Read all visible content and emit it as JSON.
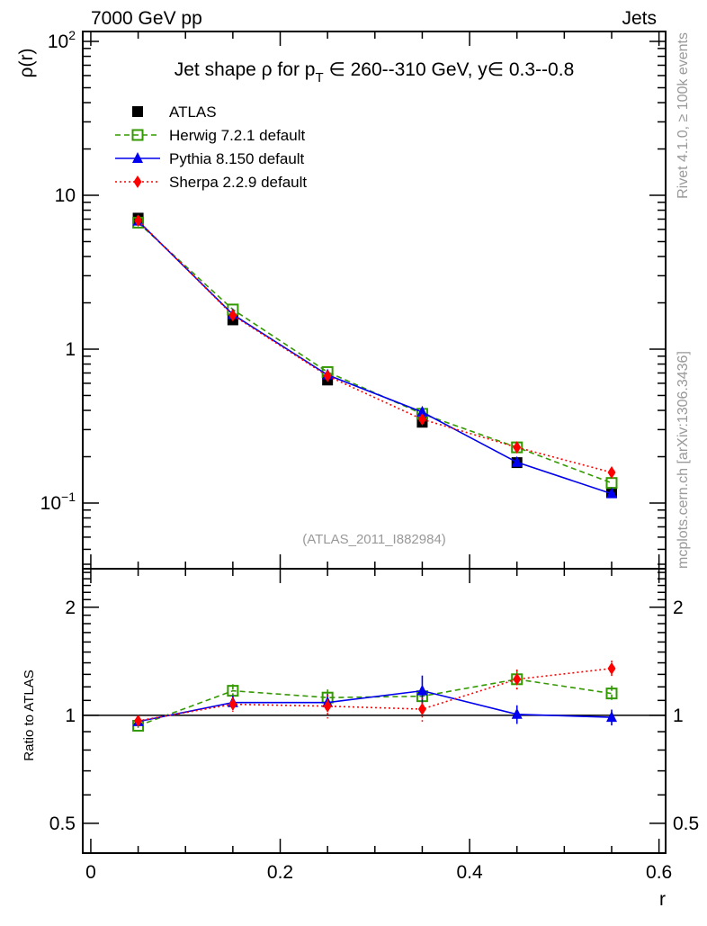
{
  "header": {
    "left": "7000 GeV pp",
    "right": "Jets"
  },
  "side_text": {
    "top": "Rivet 4.1.0, ≥ 100k events",
    "bottom": "mcplots.cern.ch [arXiv:1306.3436]"
  },
  "chart_data": [
    {
      "type": "line",
      "panel": "main",
      "title": "Jet shape ρ for p_T ∈ 260--310 GeV, y∈ 0.3--0.8",
      "title_parts": {
        "a": "Jet shape ρ for p",
        "sub": "T",
        "b": " ∈ 260--310 GeV, y∈ 0.3--0.8"
      },
      "ylabel": "ρ(r)",
      "yscale": "log",
      "ylim": [
        0.0374,
        116
      ],
      "xlim": [
        -0.0085,
        0.607
      ],
      "yticks": [
        {
          "v": 0.1,
          "label": "10",
          "sup": "−1"
        },
        {
          "v": 1,
          "label": "1",
          "sup": ""
        },
        {
          "v": 10,
          "label": "10",
          "sup": ""
        },
        {
          "v": 100,
          "label": "10",
          "sup": "2"
        }
      ],
      "annotation": "(ATLAS_2011_I882984)",
      "legend_position": "top-left",
      "x": [
        0.05,
        0.15,
        0.25,
        0.35,
        0.45,
        0.55
      ],
      "series": [
        {
          "name": "ATLAS",
          "color": "#000000",
          "marker": "square-filled",
          "line": "none",
          "values": [
            7.1,
            1.55,
            0.63,
            0.335,
            0.183,
            0.117
          ]
        },
        {
          "name": "Herwig 7.2.1 default",
          "color": "#339900",
          "marker": "square-open",
          "line": "dashed",
          "values": [
            6.64,
            1.81,
            0.71,
            0.38,
            0.23,
            0.135
          ]
        },
        {
          "name": "Pythia 8.150 default",
          "color": "#0000ee",
          "marker": "triangle",
          "line": "solid",
          "values": [
            6.8,
            1.68,
            0.68,
            0.39,
            0.184,
            0.115
          ]
        },
        {
          "name": "Sherpa 2.2.9 default",
          "color": "#ff0000",
          "marker": "diamond",
          "line": "dotted",
          "values": [
            6.85,
            1.66,
            0.67,
            0.35,
            0.23,
            0.158
          ]
        }
      ]
    },
    {
      "type": "line",
      "panel": "ratio",
      "ylabel": "Ratio to ATLAS",
      "xlabel": "r",
      "yscale": "log",
      "ylim": [
        0.413,
        2.56
      ],
      "xlim": [
        -0.0085,
        0.607
      ],
      "yticks": [
        {
          "v": 0.5,
          "label": "0.5"
        },
        {
          "v": 1,
          "label": "1"
        },
        {
          "v": 2,
          "label": "2"
        }
      ],
      "xticks": [
        {
          "v": 0,
          "label": "0"
        },
        {
          "v": 0.2,
          "label": "0.2"
        },
        {
          "v": 0.4,
          "label": "0.4"
        },
        {
          "v": 0.6,
          "label": "0.6"
        }
      ],
      "x": [
        0.05,
        0.15,
        0.25,
        0.35,
        0.45,
        0.55
      ],
      "series": [
        {
          "name": "Herwig 7.2.1 default",
          "color": "#339900",
          "marker": "square-open",
          "line": "dashed",
          "values": [
            0.935,
            1.17,
            1.12,
            1.13,
            1.26,
            1.15
          ],
          "errors": [
            0.02,
            0.05,
            0.06,
            0.05,
            0.08,
            0.06
          ]
        },
        {
          "name": "Pythia 8.150 default",
          "color": "#0000ee",
          "marker": "triangle",
          "line": "solid",
          "values": [
            0.96,
            1.085,
            1.085,
            1.17,
            1.006,
            0.987
          ],
          "errors": [
            0.015,
            0.05,
            0.06,
            0.12,
            0.06,
            0.05
          ]
        },
        {
          "name": "Sherpa 2.2.9 default",
          "color": "#ff0000",
          "marker": "diamond",
          "line": "dotted",
          "values": [
            0.965,
            1.073,
            1.06,
            1.04,
            1.26,
            1.35
          ],
          "errors": [
            0.015,
            0.05,
            0.08,
            0.08,
            0.08,
            0.07
          ]
        }
      ]
    }
  ]
}
